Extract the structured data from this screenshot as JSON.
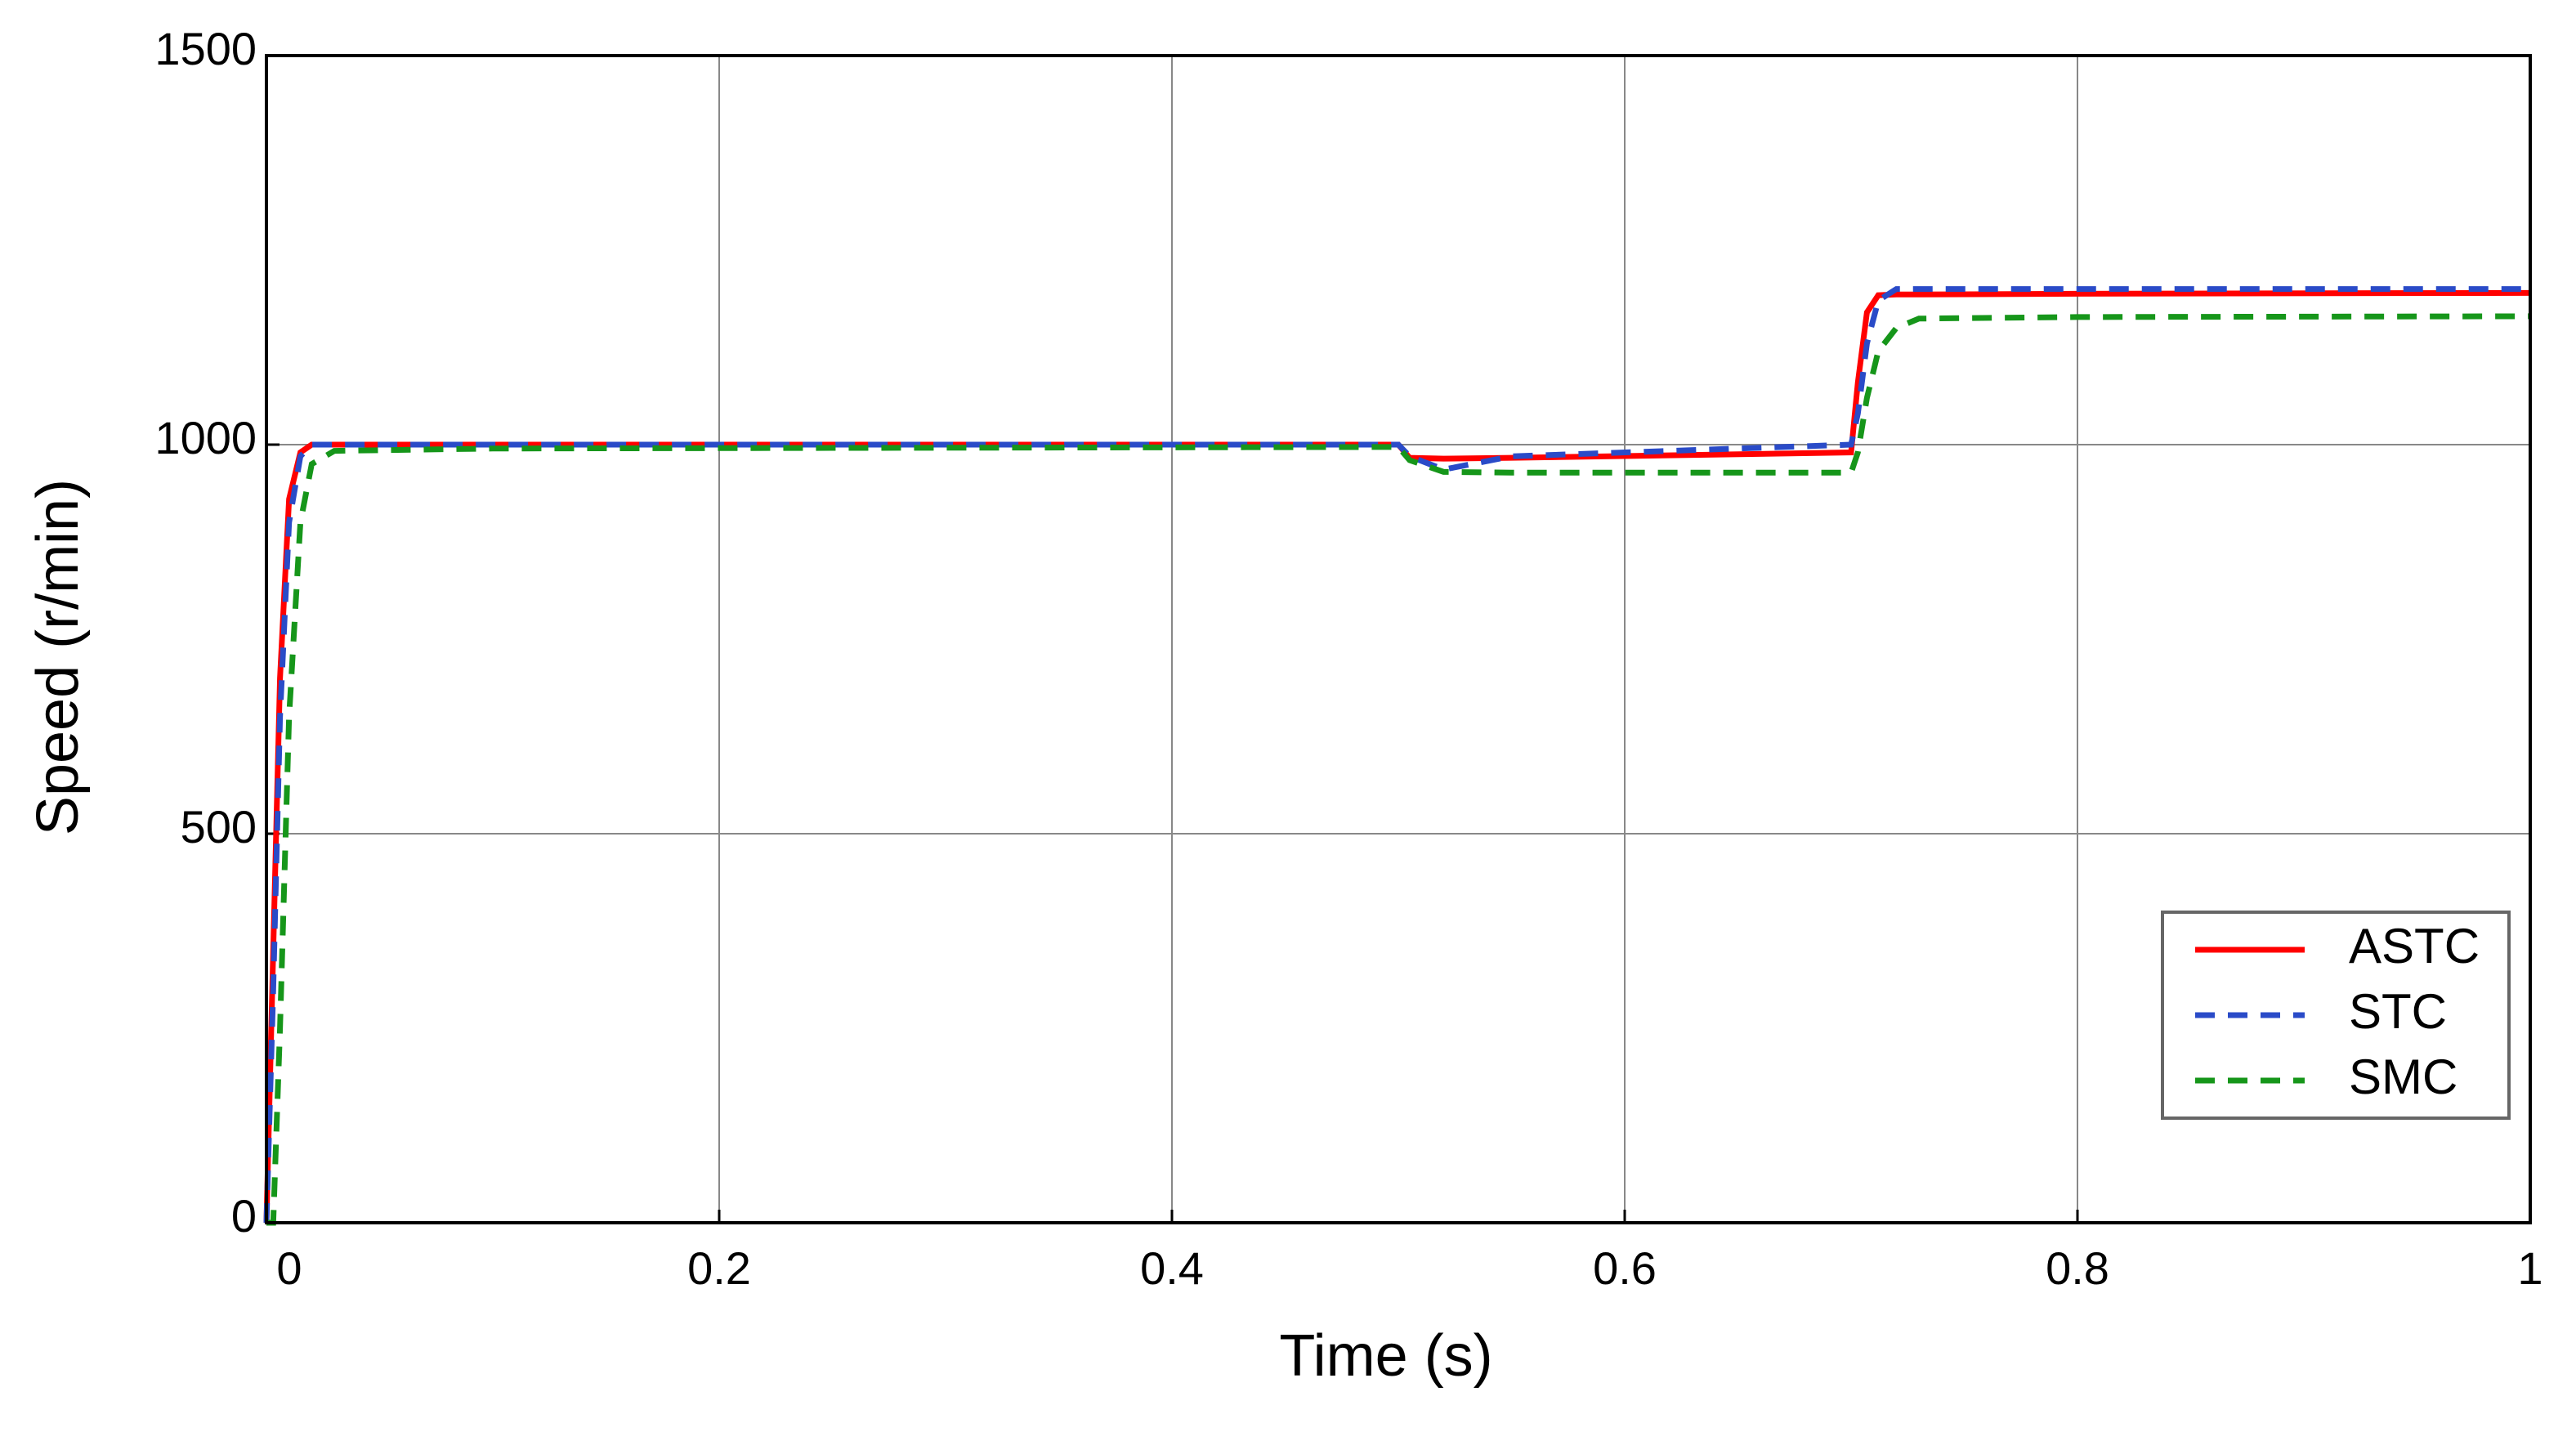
{
  "chart_data": {
    "type": "line",
    "x_label": "Time (s)",
    "y_label": "Speed (r/min)",
    "x": [
      0,
      0.003,
      0.006,
      0.01,
      0.015,
      0.02,
      0.03,
      0.1,
      0.5,
      0.505,
      0.52,
      0.55,
      0.7,
      0.703,
      0.707,
      0.712,
      0.72,
      0.73,
      0.8,
      1
    ],
    "series": [
      {
        "name": "ASTC",
        "color": "#ff0000",
        "linestyle": "solid",
        "values": [
          0,
          350,
          700,
          930,
          990,
          1000,
          1000,
          1000,
          1000,
          983,
          982,
          983,
          990,
          1080,
          1170,
          1192,
          1193,
          1193,
          1194,
          1195
        ]
      },
      {
        "name": "STC",
        "color": "#2a4bc8",
        "linestyle": "dashed",
        "values": [
          0,
          300,
          650,
          900,
          985,
          1000,
          1000,
          1000,
          1000,
          985,
          968,
          985,
          1000,
          1040,
          1130,
          1185,
          1200,
          1200,
          1200,
          1200
        ]
      },
      {
        "name": "SMC",
        "color": "#16961a",
        "linestyle": "dashed",
        "values": [
          0,
          0,
          250,
          650,
          900,
          975,
          992,
          995,
          997,
          980,
          965,
          964,
          964,
          990,
          1060,
          1120,
          1150,
          1162,
          1164,
          1165
        ]
      }
    ],
    "xlim": [
      0,
      1
    ],
    "xticks": [
      0,
      0.2,
      0.4,
      0.6,
      0.8,
      1
    ],
    "ylim": [
      0,
      1500
    ],
    "yticks": [
      0,
      500,
      1000,
      1500
    ],
    "grid": true,
    "legend": "lower right"
  }
}
